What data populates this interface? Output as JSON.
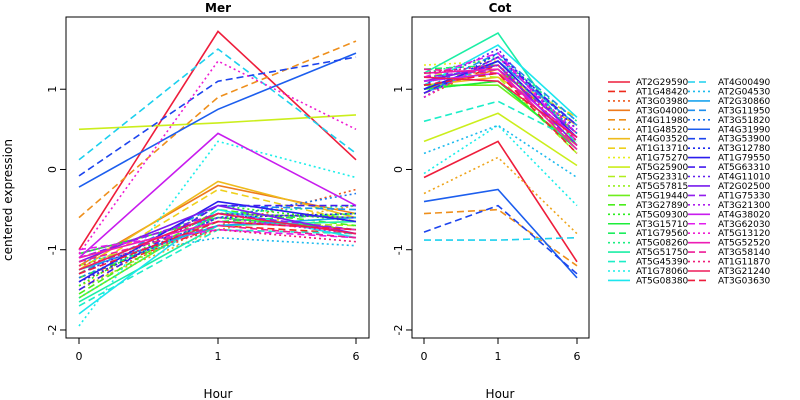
{
  "chart_data": {
    "type": "line",
    "ylabel": "centered expression",
    "y_ticks": [
      -2,
      -1,
      0,
      1
    ],
    "ylim": [
      -2.1,
      1.9
    ],
    "x": [
      0,
      1,
      6
    ],
    "x_tick_labels": [
      "0",
      "1",
      "6"
    ],
    "panels": [
      {
        "title": "Mer",
        "xlabel": "Hour"
      },
      {
        "title": "Cot",
        "xlabel": "Hour"
      }
    ],
    "legend_placement": "right",
    "series": [
      {
        "name": "AT2G29590",
        "color": "#ee1d3b",
        "dash": "solid",
        "mer": [
          -1.0,
          1.72,
          0.12
        ],
        "cot": [
          -0.1,
          0.35,
          -1.15
        ]
      },
      {
        "name": "AT1G48420",
        "color": "#ee2a1c",
        "dash": "dashed",
        "mer": [
          -1.35,
          -0.7,
          -0.8
        ],
        "cot": [
          0.95,
          1.3,
          0.3
        ]
      },
      {
        "name": "AT3G03980",
        "color": "#ee5a1c",
        "dash": "dotted",
        "mer": [
          -1.4,
          -0.7,
          -0.25
        ],
        "cot": [
          0.9,
          1.35,
          0.4
        ]
      },
      {
        "name": "AT3G04000",
        "color": "#ee7a1c",
        "dash": "solid",
        "mer": [
          -1.2,
          -0.2,
          -0.55
        ],
        "cot": [
          1.0,
          1.25,
          0.45
        ]
      },
      {
        "name": "AT4G11980",
        "color": "#ee8f1c",
        "dash": "dashed",
        "mer": [
          -0.6,
          0.9,
          1.6
        ],
        "cot": [
          -0.55,
          -0.5,
          -1.2
        ]
      },
      {
        "name": "AT1G48520",
        "color": "#eea51c",
        "dash": "dotted",
        "mer": [
          -1.45,
          -0.75,
          -0.45
        ],
        "cot": [
          -0.3,
          0.15,
          -0.8
        ]
      },
      {
        "name": "AT4G03520",
        "color": "#eebb1c",
        "dash": "solid",
        "mer": [
          -1.25,
          -0.15,
          -0.6
        ],
        "cot": [
          1.05,
          1.15,
          0.55
        ]
      },
      {
        "name": "AT1G13710",
        "color": "#eed01c",
        "dash": "dashed",
        "mer": [
          -1.3,
          -0.25,
          -0.65
        ],
        "cot": [
          1.1,
          1.2,
          0.65
        ]
      },
      {
        "name": "AT1G75270",
        "color": "#e6ee1c",
        "dash": "dotted",
        "mer": [
          -1.1,
          -0.55,
          -0.75
        ],
        "cot": [
          1.3,
          1.35,
          0.55
        ]
      },
      {
        "name": "AT5G25900",
        "color": "#cbee1c",
        "dash": "solid",
        "mer": [
          0.5,
          0.58,
          0.68
        ],
        "cot": [
          0.35,
          0.7,
          0.05
        ]
      },
      {
        "name": "AT5G23310",
        "color": "#b0ee1c",
        "dash": "dashed",
        "mer": [
          -1.2,
          -0.65,
          -0.7
        ],
        "cot": [
          1.2,
          1.15,
          0.2
        ]
      },
      {
        "name": "AT5G57815",
        "color": "#95ee1c",
        "dash": "dotted",
        "mer": [
          -1.5,
          -0.6,
          -0.55
        ],
        "cot": [
          1.0,
          1.1,
          0.35
        ]
      },
      {
        "name": "AT5G19440",
        "color": "#6fee1c",
        "dash": "solid",
        "mer": [
          -1.6,
          -0.55,
          -0.6
        ],
        "cot": [
          1.05,
          1.05,
          0.3
        ]
      },
      {
        "name": "AT3G27890",
        "color": "#4aee1c",
        "dash": "dashed",
        "mer": [
          -1.55,
          -0.5,
          -0.7
        ],
        "cot": [
          1.1,
          1.2,
          0.4
        ]
      },
      {
        "name": "AT5G09300",
        "color": "#2aee1c",
        "dash": "dotted",
        "mer": [
          -1.45,
          -0.45,
          -0.65
        ],
        "cot": [
          1.15,
          1.25,
          0.45
        ]
      },
      {
        "name": "AT3G15710",
        "color": "#1cee3a",
        "dash": "solid",
        "mer": [
          -1.05,
          -0.6,
          -0.75
        ],
        "cot": [
          1.0,
          1.1,
          0.25
        ]
      },
      {
        "name": "AT1G79560",
        "color": "#1cee5e",
        "dash": "dashed",
        "mer": [
          -1.35,
          -0.65,
          -0.55
        ],
        "cot": [
          1.25,
          1.3,
          0.45
        ]
      },
      {
        "name": "AT5G08260",
        "color": "#1cee82",
        "dash": "dotted",
        "mer": [
          -1.6,
          -0.55,
          -0.45
        ],
        "cot": [
          1.2,
          1.4,
          0.6
        ]
      },
      {
        "name": "AT5G51750",
        "color": "#1ceea5",
        "dash": "solid",
        "mer": [
          -1.65,
          -0.7,
          -0.65
        ],
        "cot": [
          1.2,
          1.7,
          0.3
        ]
      },
      {
        "name": "AT5G45390",
        "color": "#1ceec8",
        "dash": "dashed",
        "mer": [
          -1.7,
          -0.75,
          -0.8
        ],
        "cot": [
          0.6,
          0.85,
          0.35
        ]
      },
      {
        "name": "AT1G78060",
        "color": "#1ceeea",
        "dash": "dotted",
        "mer": [
          -1.95,
          0.35,
          -0.1
        ],
        "cot": [
          -0.05,
          0.55,
          -0.45
        ]
      },
      {
        "name": "AT5G08380",
        "color": "#1ce6ee",
        "dash": "solid",
        "mer": [
          -1.8,
          -0.5,
          -0.85
        ],
        "cot": [
          1.05,
          1.55,
          0.65
        ]
      },
      {
        "name": "AT4G00490",
        "color": "#1cd0ee",
        "dash": "dashed",
        "mer": [
          0.12,
          1.5,
          0.2
        ],
        "cot": [
          -0.88,
          -0.88,
          -0.85
        ]
      },
      {
        "name": "AT2G04530",
        "color": "#1cbaee",
        "dash": "dotted",
        "mer": [
          -1.15,
          -0.85,
          -0.95
        ],
        "cot": [
          0.2,
          0.55,
          -0.1
        ]
      },
      {
        "name": "AT2G30860",
        "color": "#1ca4ee",
        "dash": "solid",
        "mer": [
          -1.25,
          -0.7,
          -0.6
        ],
        "cot": [
          0.95,
          1.35,
          0.55
        ]
      },
      {
        "name": "AT3G11950",
        "color": "#1c8eee",
        "dash": "dashed",
        "mer": [
          -1.3,
          -0.45,
          -0.5
        ],
        "cot": [
          1.0,
          1.45,
          0.6
        ]
      },
      {
        "name": "AT3G51820",
        "color": "#1c78ee",
        "dash": "dotted",
        "mer": [
          -1.35,
          -0.6,
          -0.3
        ],
        "cot": [
          0.95,
          1.4,
          0.45
        ]
      },
      {
        "name": "AT4G31990",
        "color": "#1c5eee",
        "dash": "solid",
        "mer": [
          -0.22,
          0.75,
          1.45
        ],
        "cot": [
          -0.4,
          -0.25,
          -1.35
        ]
      },
      {
        "name": "AT3G53900",
        "color": "#1c44ee",
        "dash": "dashed",
        "mer": [
          -0.08,
          1.1,
          1.4
        ],
        "cot": [
          -0.78,
          -0.45,
          -1.3
        ]
      },
      {
        "name": "AT3G12780",
        "color": "#1c2aee",
        "dash": "dotted",
        "mer": [
          -1.4,
          -0.6,
          -0.55
        ],
        "cot": [
          0.9,
          1.45,
          0.5
        ]
      },
      {
        "name": "AT1G79550",
        "color": "#2a1cee",
        "dash": "solid",
        "mer": [
          -1.4,
          -0.4,
          -0.65
        ],
        "cot": [
          1.0,
          1.35,
          0.4
        ]
      },
      {
        "name": "AT5G63310",
        "color": "#441cee",
        "dash": "dashed",
        "mer": [
          -1.5,
          -0.45,
          -0.45
        ],
        "cot": [
          0.95,
          1.4,
          0.55
        ]
      },
      {
        "name": "AT4G11010",
        "color": "#5e1cee",
        "dash": "dotted",
        "mer": [
          -1.3,
          -0.55,
          -0.6
        ],
        "cot": [
          1.05,
          1.5,
          0.35
        ]
      },
      {
        "name": "AT2G02500",
        "color": "#781cee",
        "dash": "solid",
        "mer": [
          -1.15,
          -0.45,
          -0.8
        ],
        "cot": [
          1.1,
          1.3,
          0.3
        ]
      },
      {
        "name": "AT1G75330",
        "color": "#931cee",
        "dash": "dashed",
        "mer": [
          -1.1,
          -0.55,
          -0.75
        ],
        "cot": [
          1.15,
          1.25,
          0.45
        ]
      },
      {
        "name": "AT3G21300",
        "color": "#ae1cee",
        "dash": "dotted",
        "mer": [
          -1.05,
          -0.6,
          -0.8
        ],
        "cot": [
          1.2,
          1.3,
          0.5
        ]
      },
      {
        "name": "AT4G38020",
        "color": "#c81cee",
        "dash": "solid",
        "mer": [
          -1.1,
          0.45,
          -0.45
        ],
        "cot": [
          1.1,
          1.2,
          0.4
        ]
      },
      {
        "name": "AT3G62030",
        "color": "#e21cee",
        "dash": "dashed",
        "mer": [
          -1.0,
          -0.75,
          -0.85
        ],
        "cot": [
          1.15,
          1.45,
          0.35
        ]
      },
      {
        "name": "AT5G13120",
        "color": "#ee1cd2",
        "dash": "dotted",
        "mer": [
          -1.05,
          1.35,
          0.5
        ],
        "cot": [
          0.9,
          1.4,
          0.45
        ]
      },
      {
        "name": "AT5G52520",
        "color": "#ee1cb5",
        "dash": "solid",
        "mer": [
          -1.1,
          -0.65,
          -0.75
        ],
        "cot": [
          1.2,
          1.25,
          0.25
        ]
      },
      {
        "name": "AT3G58140",
        "color": "#ee1c96",
        "dash": "dashed",
        "mer": [
          -1.15,
          -0.7,
          -0.85
        ],
        "cot": [
          1.25,
          1.2,
          0.3
        ]
      },
      {
        "name": "AT1G11870",
        "color": "#ee1c78",
        "dash": "dotted",
        "mer": [
          -1.2,
          -0.75,
          -0.9
        ],
        "cot": [
          1.2,
          1.3,
          0.35
        ]
      },
      {
        "name": "AT3G21240",
        "color": "#ee1c5a",
        "dash": "solid",
        "mer": [
          -1.25,
          -0.55,
          -0.8
        ],
        "cot": [
          1.15,
          1.1,
          0.4
        ]
      },
      {
        "name": "AT3G03630",
        "color": "#ee1c3c",
        "dash": "dashed",
        "mer": [
          -1.3,
          -0.65,
          -0.75
        ],
        "cot": [
          1.05,
          1.2,
          0.2
        ]
      }
    ]
  }
}
